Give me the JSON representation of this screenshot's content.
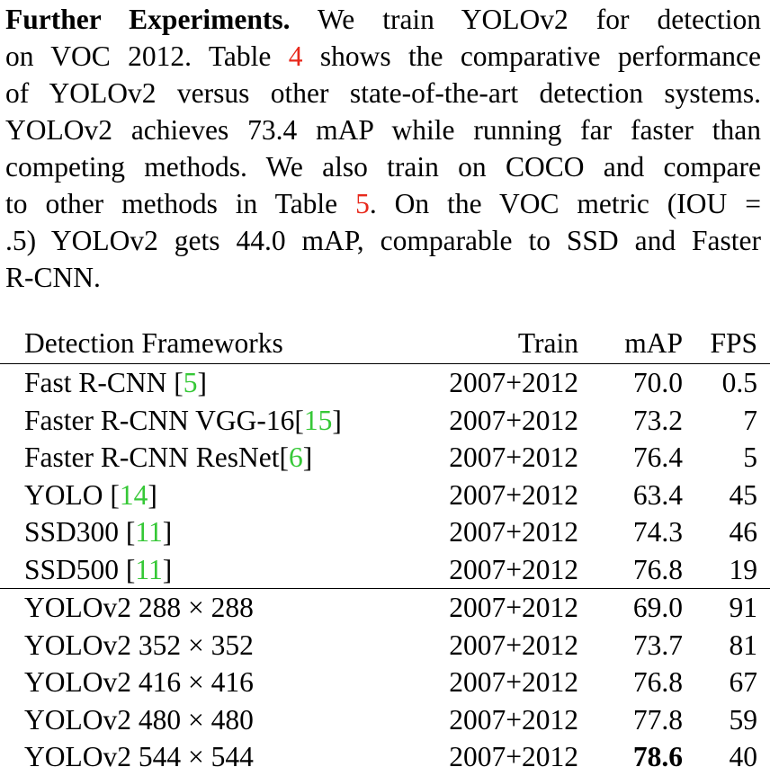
{
  "paragraph": {
    "heading": "Further Experiments.",
    "line1_rest": " We train YOLOv2 for detection",
    "line2_a": "on VOC 2012. Table ",
    "line2_ref": "4",
    "line2_b": " shows the comparative performance",
    "line3": "of YOLOv2 versus other state-of-the-art detection systems.",
    "line4": "YOLOv2 achieves 73.4 mAP while running far faster than",
    "line5": "competing methods. We also train on COCO and compare",
    "line6_a": "to other methods in Table ",
    "line6_ref": "5",
    "line6_b": ". On the VOC metric (IOU =",
    "line7": ".5) YOLOv2 gets 44.0 mAP, comparable to SSD and Faster",
    "line8": "R-CNN.",
    "colors": {
      "table_ref": "#e8291c",
      "citation": "#36c837"
    }
  },
  "table": {
    "headers": {
      "framework": "Detection Frameworks",
      "train": "Train",
      "map": "mAP",
      "fps": "FPS"
    },
    "rows": [
      {
        "name": "Fast R-CNN [",
        "cite": "5",
        "close": "]",
        "train": "2007+2012",
        "map": "70.0",
        "fps": "0.5"
      },
      {
        "name": "Faster R-CNN VGG-16[",
        "cite": "15",
        "close": "]",
        "train": "2007+2012",
        "map": "73.2",
        "fps": "7"
      },
      {
        "name": "Faster R-CNN ResNet[",
        "cite": "6",
        "close": "]",
        "train": "2007+2012",
        "map": "76.4",
        "fps": "5"
      },
      {
        "name": "YOLO [",
        "cite": "14",
        "close": "]",
        "train": "2007+2012",
        "map": "63.4",
        "fps": "45"
      },
      {
        "name": "SSD300 [",
        "cite": "11",
        "close": "]",
        "train": "2007+2012",
        "map": "74.3",
        "fps": "46"
      },
      {
        "name": "SSD500 [",
        "cite": "11",
        "close": "]",
        "train": "2007+2012",
        "map": "76.8",
        "fps": "19"
      },
      {
        "name": "YOLOv2 288 × 288",
        "train": "2007+2012",
        "map": "69.0",
        "fps": "91"
      },
      {
        "name": "YOLOv2 352 × 352",
        "train": "2007+2012",
        "map": "73.7",
        "fps": "81"
      },
      {
        "name": "YOLOv2 416 × 416",
        "train": "2007+2012",
        "map": "76.8",
        "fps": "67"
      },
      {
        "name": "YOLOv2 480 × 480",
        "train": "2007+2012",
        "map": "77.8",
        "fps": "59"
      },
      {
        "name": "YOLOv2 544 × 544",
        "train": "2007+2012",
        "map": "78.6",
        "fps": "40"
      }
    ]
  }
}
